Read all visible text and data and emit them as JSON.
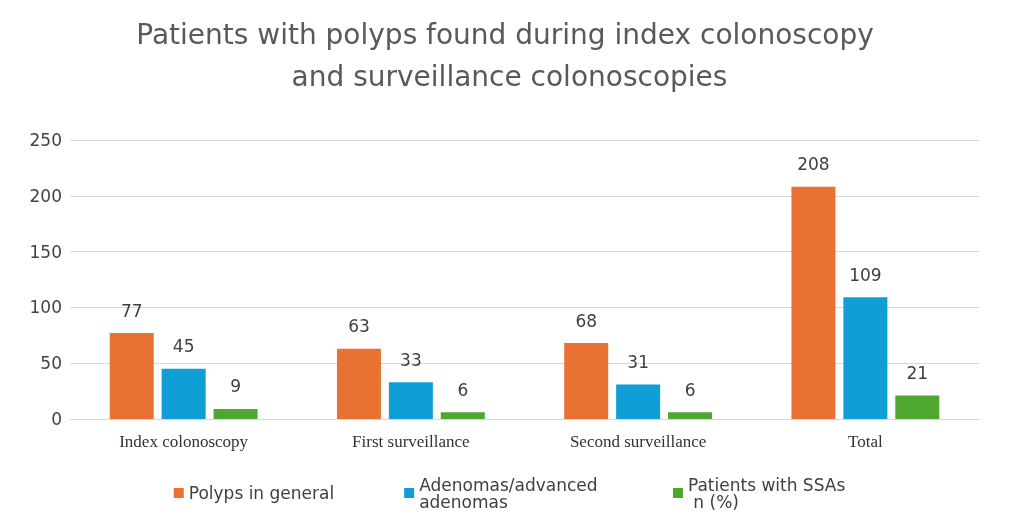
{
  "chart_data": {
    "type": "bar",
    "title": "Patients with polyps found during index colonoscopy and surveillance colonoscopies",
    "categories": [
      "Index colonoscopy",
      "First surveillance",
      "Second surveillance",
      "Total"
    ],
    "series": [
      {
        "name": "Polyps in general",
        "color": "#e97132",
        "values": [
          77,
          63,
          68,
          208
        ]
      },
      {
        "name": "Adenomas/advanced adenomas",
        "color": "#0f9ed5",
        "values": [
          45,
          33,
          31,
          109
        ]
      },
      {
        "name": "Patients with SSAs n (%)",
        "color": "#4ea72e",
        "values": [
          9,
          6,
          6,
          21
        ]
      }
    ],
    "ylim": [
      0,
      250
    ],
    "yticks": [
      0,
      50,
      100,
      150,
      200,
      250
    ],
    "grid": "y",
    "legend": "bottom",
    "data_labels": true
  }
}
